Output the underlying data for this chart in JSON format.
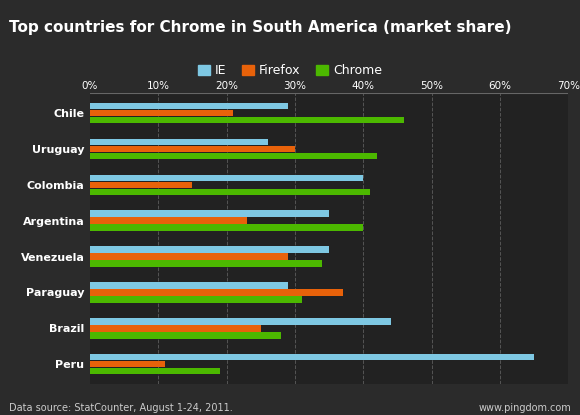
{
  "title": "Top countries for Chrome in South America (market share)",
  "categories": [
    "Chile",
    "Uruguay",
    "Colombia",
    "Argentina",
    "Venezuela",
    "Paraguay",
    "Brazil",
    "Peru"
  ],
  "ie": [
    29,
    26,
    40,
    35,
    35,
    29,
    44,
    65
  ],
  "firefox": [
    21,
    30,
    15,
    23,
    29,
    37,
    25,
    11
  ],
  "chrome": [
    46,
    42,
    41,
    40,
    34,
    31,
    28,
    19
  ],
  "ie_color": "#7EC8E3",
  "firefox_color": "#E8620A",
  "chrome_color": "#4CB800",
  "bg_color": "#2b2b2b",
  "title_bg_color": "#1a1a1a",
  "plot_bg_color": "#222222",
  "text_color": "#ffffff",
  "grid_color": "#555555",
  "xlabel_ticks": [
    0,
    10,
    20,
    30,
    40,
    50,
    60,
    70
  ],
  "tick_labels": [
    "0%",
    "10%",
    "20%",
    "30%",
    "40%",
    "50%",
    "60%",
    "70%"
  ],
  "xlim": [
    0,
    70
  ],
  "footer_left": "Data source: StatCounter, August 1-24, 2011.",
  "footer_right": "www.pingdom.com",
  "title_fontsize": 11,
  "label_fontsize": 8,
  "legend_fontsize": 9,
  "tick_fontsize": 7.5,
  "footer_fontsize": 7
}
